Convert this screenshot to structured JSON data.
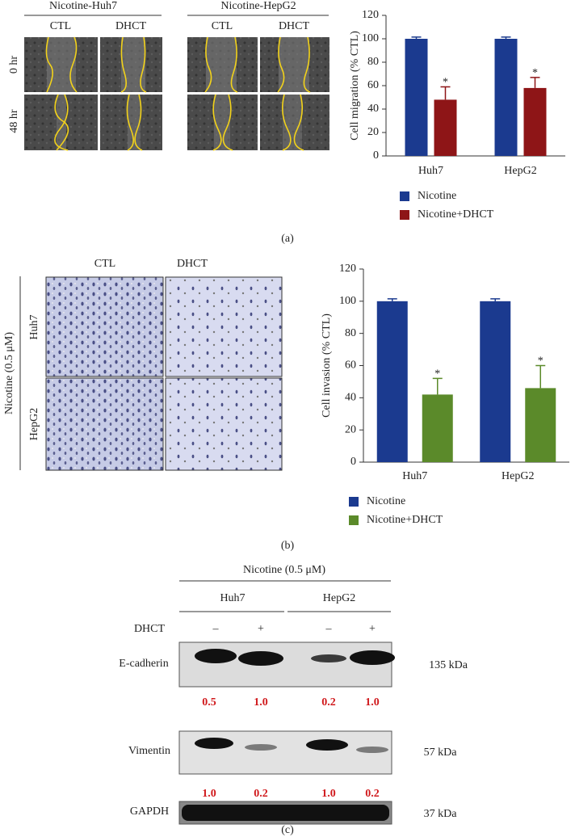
{
  "chart_data": [
    {
      "type": "bar",
      "y_label": "Cell migration (% CTL)",
      "categories": [
        "Huh7",
        "HepG2"
      ],
      "series": [
        {
          "name": "Nicotine",
          "color": "#1b3a8f",
          "values": [
            100,
            100
          ],
          "errors": [
            1.5,
            1.5
          ]
        },
        {
          "name": "Nicotine+DHCT",
          "color": "#8e1517",
          "values": [
            48,
            58
          ],
          "errors": [
            11,
            9
          ],
          "significance": [
            "*",
            "*"
          ]
        }
      ],
      "ylim": [
        0,
        120
      ],
      "yticks": [
        0,
        20,
        40,
        60,
        80,
        100,
        120
      ]
    },
    {
      "type": "bar",
      "y_label": "Cell invasion (% CTL)",
      "categories": [
        "Huh7",
        "HepG2"
      ],
      "series": [
        {
          "name": "Nicotine",
          "color": "#1b3a8f",
          "values": [
            100,
            100
          ],
          "errors": [
            1.5,
            1.5
          ]
        },
        {
          "name": "Nicotine+DHCT",
          "color": "#5b8a2a",
          "values": [
            42,
            46
          ],
          "errors": [
            10,
            14
          ],
          "significance": [
            "*",
            "*"
          ]
        }
      ],
      "ylim": [
        0,
        120
      ],
      "yticks": [
        0,
        20,
        40,
        60,
        80,
        100,
        120
      ]
    }
  ],
  "panel_a": {
    "groups": [
      "Nicotine-Huh7",
      "Nicotine-HepG2"
    ],
    "columns": [
      "CTL",
      "DHCT",
      "CTL",
      "DHCT"
    ],
    "rows": [
      "0 hr",
      "48 hr"
    ],
    "label": "(a)"
  },
  "panel_b": {
    "side_label": "Nicotine (0.5 μM)",
    "columns": [
      "CTL",
      "DHCT"
    ],
    "rows": [
      "Huh7",
      "HepG2"
    ],
    "label": "(b)"
  },
  "panel_c": {
    "title": "Nicotine (0.5 μM)",
    "groups": [
      "Huh7",
      "HepG2"
    ],
    "treatment": "DHCT",
    "signs": [
      "–",
      "+",
      "–",
      "+"
    ],
    "blots": [
      {
        "name": "E-cadherin",
        "size": "135 kDa",
        "ratios": [
          "0.5",
          "1.0",
          "0.2",
          "1.0"
        ]
      },
      {
        "name": "Vimentin",
        "size": "57 kDa",
        "ratios": [
          "1.0",
          "0.2",
          "1.0",
          "0.2"
        ]
      },
      {
        "name": "GAPDH",
        "size": "37 kDa"
      }
    ],
    "label": "(c)"
  }
}
